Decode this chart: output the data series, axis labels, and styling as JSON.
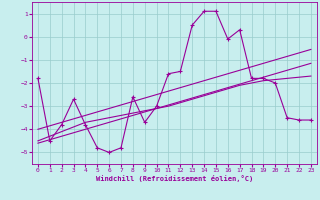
{
  "xlabel": "Windchill (Refroidissement éolien,°C)",
  "x": [
    0,
    1,
    2,
    3,
    4,
    5,
    6,
    7,
    8,
    9,
    10,
    11,
    12,
    13,
    14,
    15,
    16,
    17,
    18,
    19,
    20,
    21,
    22,
    23
  ],
  "y_main": [
    -1.8,
    -4.5,
    -3.8,
    -2.7,
    -3.8,
    -4.8,
    -5.0,
    -4.8,
    -2.6,
    -3.7,
    -3.0,
    -1.6,
    -1.5,
    0.5,
    1.1,
    1.1,
    -0.1,
    0.3,
    -1.8,
    -1.8,
    -2.0,
    -3.5,
    -3.6,
    -3.6
  ],
  "y_trend1": [
    -4.5,
    -4.3,
    -4.1,
    -3.9,
    -3.7,
    -3.6,
    -3.5,
    -3.4,
    -3.3,
    -3.2,
    -3.1,
    -3.0,
    -2.85,
    -2.7,
    -2.55,
    -2.4,
    -2.25,
    -2.1,
    -2.0,
    -1.9,
    -1.85,
    -1.8,
    -1.75,
    -1.7
  ],
  "y_trend2": [
    -4.6,
    -4.45,
    -4.3,
    -4.15,
    -4.0,
    -3.85,
    -3.7,
    -3.55,
    -3.4,
    -3.25,
    -3.1,
    -2.95,
    -2.8,
    -2.65,
    -2.5,
    -2.35,
    -2.2,
    -2.05,
    -1.9,
    -1.75,
    -1.6,
    -1.45,
    -1.3,
    -1.15
  ],
  "y_trend3": [
    -4.0,
    -3.85,
    -3.7,
    -3.55,
    -3.4,
    -3.25,
    -3.1,
    -2.95,
    -2.8,
    -2.65,
    -2.5,
    -2.35,
    -2.2,
    -2.05,
    -1.9,
    -1.75,
    -1.6,
    -1.45,
    -1.3,
    -1.15,
    -1.0,
    -0.85,
    -0.7,
    -0.55
  ],
  "line_color": "#990099",
  "bg_color": "#C8EEEE",
  "grid_color": "#99CCCC",
  "ylim": [
    -5.5,
    1.5
  ],
  "xlim": [
    -0.5,
    23.5
  ],
  "yticks": [
    1,
    0,
    -1,
    -2,
    -3,
    -4,
    -5
  ],
  "xticks": [
    0,
    1,
    2,
    3,
    4,
    5,
    6,
    7,
    8,
    9,
    10,
    11,
    12,
    13,
    14,
    15,
    16,
    17,
    18,
    19,
    20,
    21,
    22,
    23
  ]
}
